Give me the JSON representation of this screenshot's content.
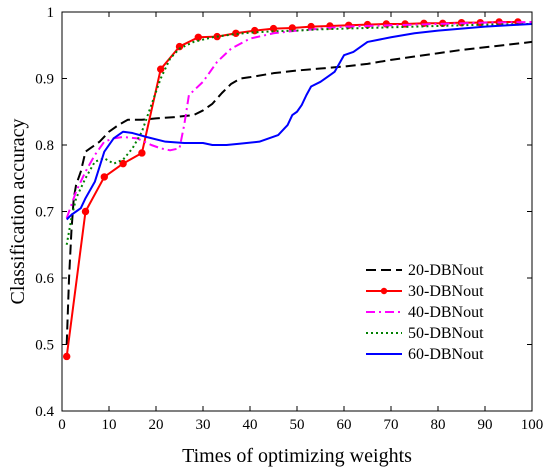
{
  "chart_data": {
    "type": "line",
    "xlabel": "Times of optimizing weights",
    "ylabel": "Classification accuracy",
    "xlim": [
      0,
      100
    ],
    "ylim": [
      0.4,
      1.0
    ],
    "xticks": [
      "0",
      "10",
      "20",
      "30",
      "40",
      "50",
      "60",
      "70",
      "80",
      "90",
      "100"
    ],
    "yticks": [
      "0.4",
      "0.5",
      "0.6",
      "0.7",
      "0.8",
      "0.9",
      "1"
    ],
    "grid": false,
    "legend_position": "bottom-right",
    "series": [
      {
        "name": "20-DBNout",
        "color": "#000000",
        "dash": "long-dash",
        "marker": "none",
        "x": [
          1,
          1.5,
          2,
          2.5,
          3,
          4,
          5,
          6,
          8,
          10,
          12,
          14,
          17,
          20,
          24,
          28,
          30,
          32,
          34,
          36,
          38,
          40,
          45,
          50,
          55,
          60,
          65,
          70,
          75,
          80,
          85,
          90,
          95,
          100
        ],
        "y": [
          0.5,
          0.6,
          0.67,
          0.72,
          0.74,
          0.76,
          0.79,
          0.795,
          0.805,
          0.82,
          0.83,
          0.838,
          0.838,
          0.84,
          0.842,
          0.845,
          0.852,
          0.862,
          0.878,
          0.892,
          0.9,
          0.902,
          0.908,
          0.912,
          0.915,
          0.918,
          0.922,
          0.928,
          0.933,
          0.938,
          0.943,
          0.947,
          0.951,
          0.955
        ]
      },
      {
        "name": "30-DBNout",
        "color": "#ff0000",
        "dash": "solid",
        "marker": "circle",
        "x": [
          1,
          5,
          9,
          13,
          17,
          21,
          25,
          29,
          33,
          37,
          41,
          45,
          49,
          53,
          57,
          61,
          65,
          69,
          73,
          77,
          81,
          85,
          89,
          93,
          97
        ],
        "y": [
          0.482,
          0.7,
          0.752,
          0.772,
          0.788,
          0.914,
          0.948,
          0.962,
          0.963,
          0.968,
          0.972,
          0.975,
          0.976,
          0.978,
          0.979,
          0.98,
          0.981,
          0.982,
          0.982,
          0.983,
          0.983,
          0.984,
          0.984,
          0.985,
          0.985
        ]
      },
      {
        "name": "40-DBNout",
        "color": "#ff00ff",
        "dash": "dash-dot",
        "marker": "none",
        "x": [
          1,
          2,
          3,
          5,
          7,
          9,
          11,
          13,
          16,
          19,
          21,
          23,
          25,
          26,
          27,
          30,
          33,
          36,
          40,
          45,
          50,
          55,
          60,
          70,
          80,
          90,
          100
        ],
        "y": [
          0.69,
          0.71,
          0.73,
          0.76,
          0.785,
          0.805,
          0.81,
          0.812,
          0.81,
          0.8,
          0.795,
          0.792,
          0.795,
          0.83,
          0.875,
          0.895,
          0.925,
          0.945,
          0.96,
          0.968,
          0.972,
          0.975,
          0.978,
          0.98,
          0.982,
          0.984,
          0.985
        ]
      },
      {
        "name": "50-DBNout",
        "color": "#008000",
        "dash": "dotted",
        "marker": "none",
        "x": [
          1,
          2,
          3,
          5,
          7,
          9,
          11,
          13,
          15,
          17,
          19,
          21,
          23,
          25,
          28,
          32,
          36,
          40,
          45,
          50,
          55,
          60,
          70,
          80,
          90,
          100
        ],
        "y": [
          0.65,
          0.69,
          0.72,
          0.75,
          0.775,
          0.78,
          0.772,
          0.778,
          0.795,
          0.82,
          0.86,
          0.9,
          0.93,
          0.945,
          0.955,
          0.962,
          0.966,
          0.969,
          0.971,
          0.972,
          0.974,
          0.975,
          0.977,
          0.979,
          0.981,
          0.982
        ]
      },
      {
        "name": "60-DBNout",
        "color": "#0000ff",
        "dash": "solid",
        "marker": "none",
        "x": [
          1,
          2,
          3,
          4,
          5,
          7,
          9,
          11,
          13,
          15,
          18,
          22,
          26,
          30,
          32,
          35,
          38,
          42,
          46,
          48,
          49,
          50,
          51,
          52,
          53,
          55,
          57,
          58,
          60,
          62,
          65,
          70,
          75,
          80,
          85,
          90,
          95,
          100
        ],
        "y": [
          0.688,
          0.695,
          0.7,
          0.705,
          0.72,
          0.745,
          0.79,
          0.81,
          0.82,
          0.818,
          0.812,
          0.805,
          0.803,
          0.803,
          0.8,
          0.8,
          0.802,
          0.805,
          0.815,
          0.83,
          0.845,
          0.85,
          0.86,
          0.875,
          0.888,
          0.895,
          0.905,
          0.91,
          0.935,
          0.94,
          0.955,
          0.962,
          0.968,
          0.972,
          0.975,
          0.978,
          0.98,
          0.982
        ]
      }
    ]
  }
}
